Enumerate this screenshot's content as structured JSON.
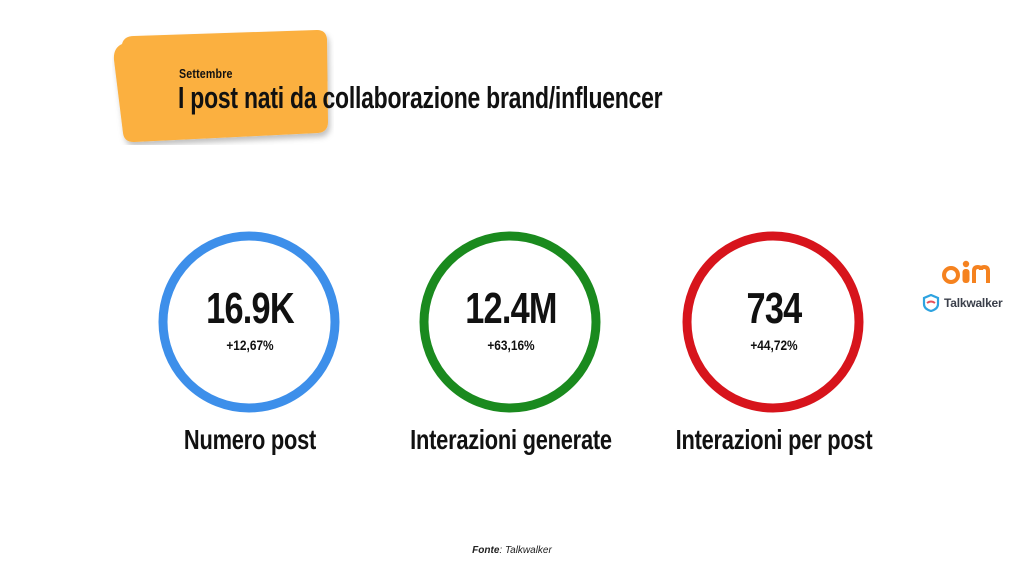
{
  "header": {
    "subtitle": "Settembre",
    "title": "I post nati da collaborazione brand/influencer",
    "highlight_color": "#FBB040"
  },
  "metrics": [
    {
      "value": "16.9K",
      "change": "+12,67%",
      "label": "Numero post",
      "ring_color": "#3D8FEA"
    },
    {
      "value": "12.4M",
      "change": "+63,16%",
      "label": "Interazioni generate",
      "ring_color": "#1A8A1E"
    },
    {
      "value": "734",
      "change": "+44,72%",
      "label": "Interazioni per post",
      "ring_color": "#D7141C"
    }
  ],
  "logos": {
    "primary": "oim-logo",
    "secondary_label": "Talkwalker"
  },
  "footer": {
    "source_prefix": "Fonte",
    "source_name": ": Talkwalker"
  }
}
